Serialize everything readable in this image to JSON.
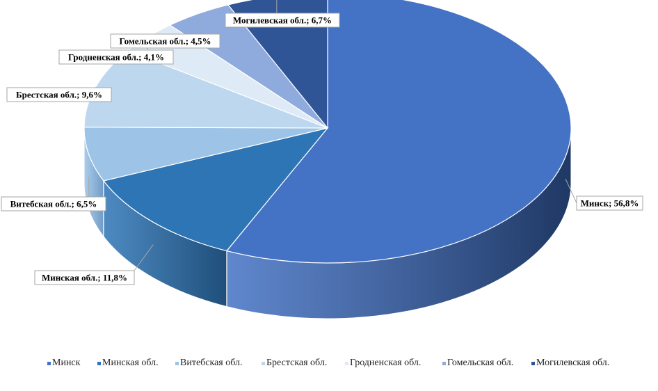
{
  "chart_data": {
    "type": "pie",
    "style": "3d",
    "title": "",
    "legend_position": "bottom",
    "categories": [
      "Минск",
      "Минская обл.",
      "Витебская обл.",
      "Брестская обл.",
      "Гродненская обл.",
      "Гомельская обл.",
      "Могилевская обл."
    ],
    "values": [
      56.8,
      11.8,
      6.5,
      9.6,
      4.1,
      4.5,
      6.7
    ],
    "value_labels": [
      "56,8%",
      "11,8%",
      "6,5%",
      "9,6%",
      "4,1%",
      "4,5%",
      "6,7%"
    ],
    "colors": [
      "#4472C4",
      "#2E75B6",
      "#9DC3E6",
      "#BDD7EE",
      "#DEEBF7",
      "#8FAADC",
      "#2F5597"
    ],
    "side_colors": [
      "#1F3864",
      "#1F4E79",
      "#6F9AC4",
      "#8FAFD0",
      "#B0C4DE",
      "#5F7FB5",
      "#203A6B"
    ],
    "data_labels": [
      "Минск; 56,8%",
      "Минская обл.; 11,8%",
      "Витебская обл.; 6,5%",
      "Брестская обл.; 9,6%",
      "Гродненская обл.; 4,1%",
      "Гомельская обл.; 4,5%",
      "Могилевская обл.; 6,7%"
    ]
  }
}
